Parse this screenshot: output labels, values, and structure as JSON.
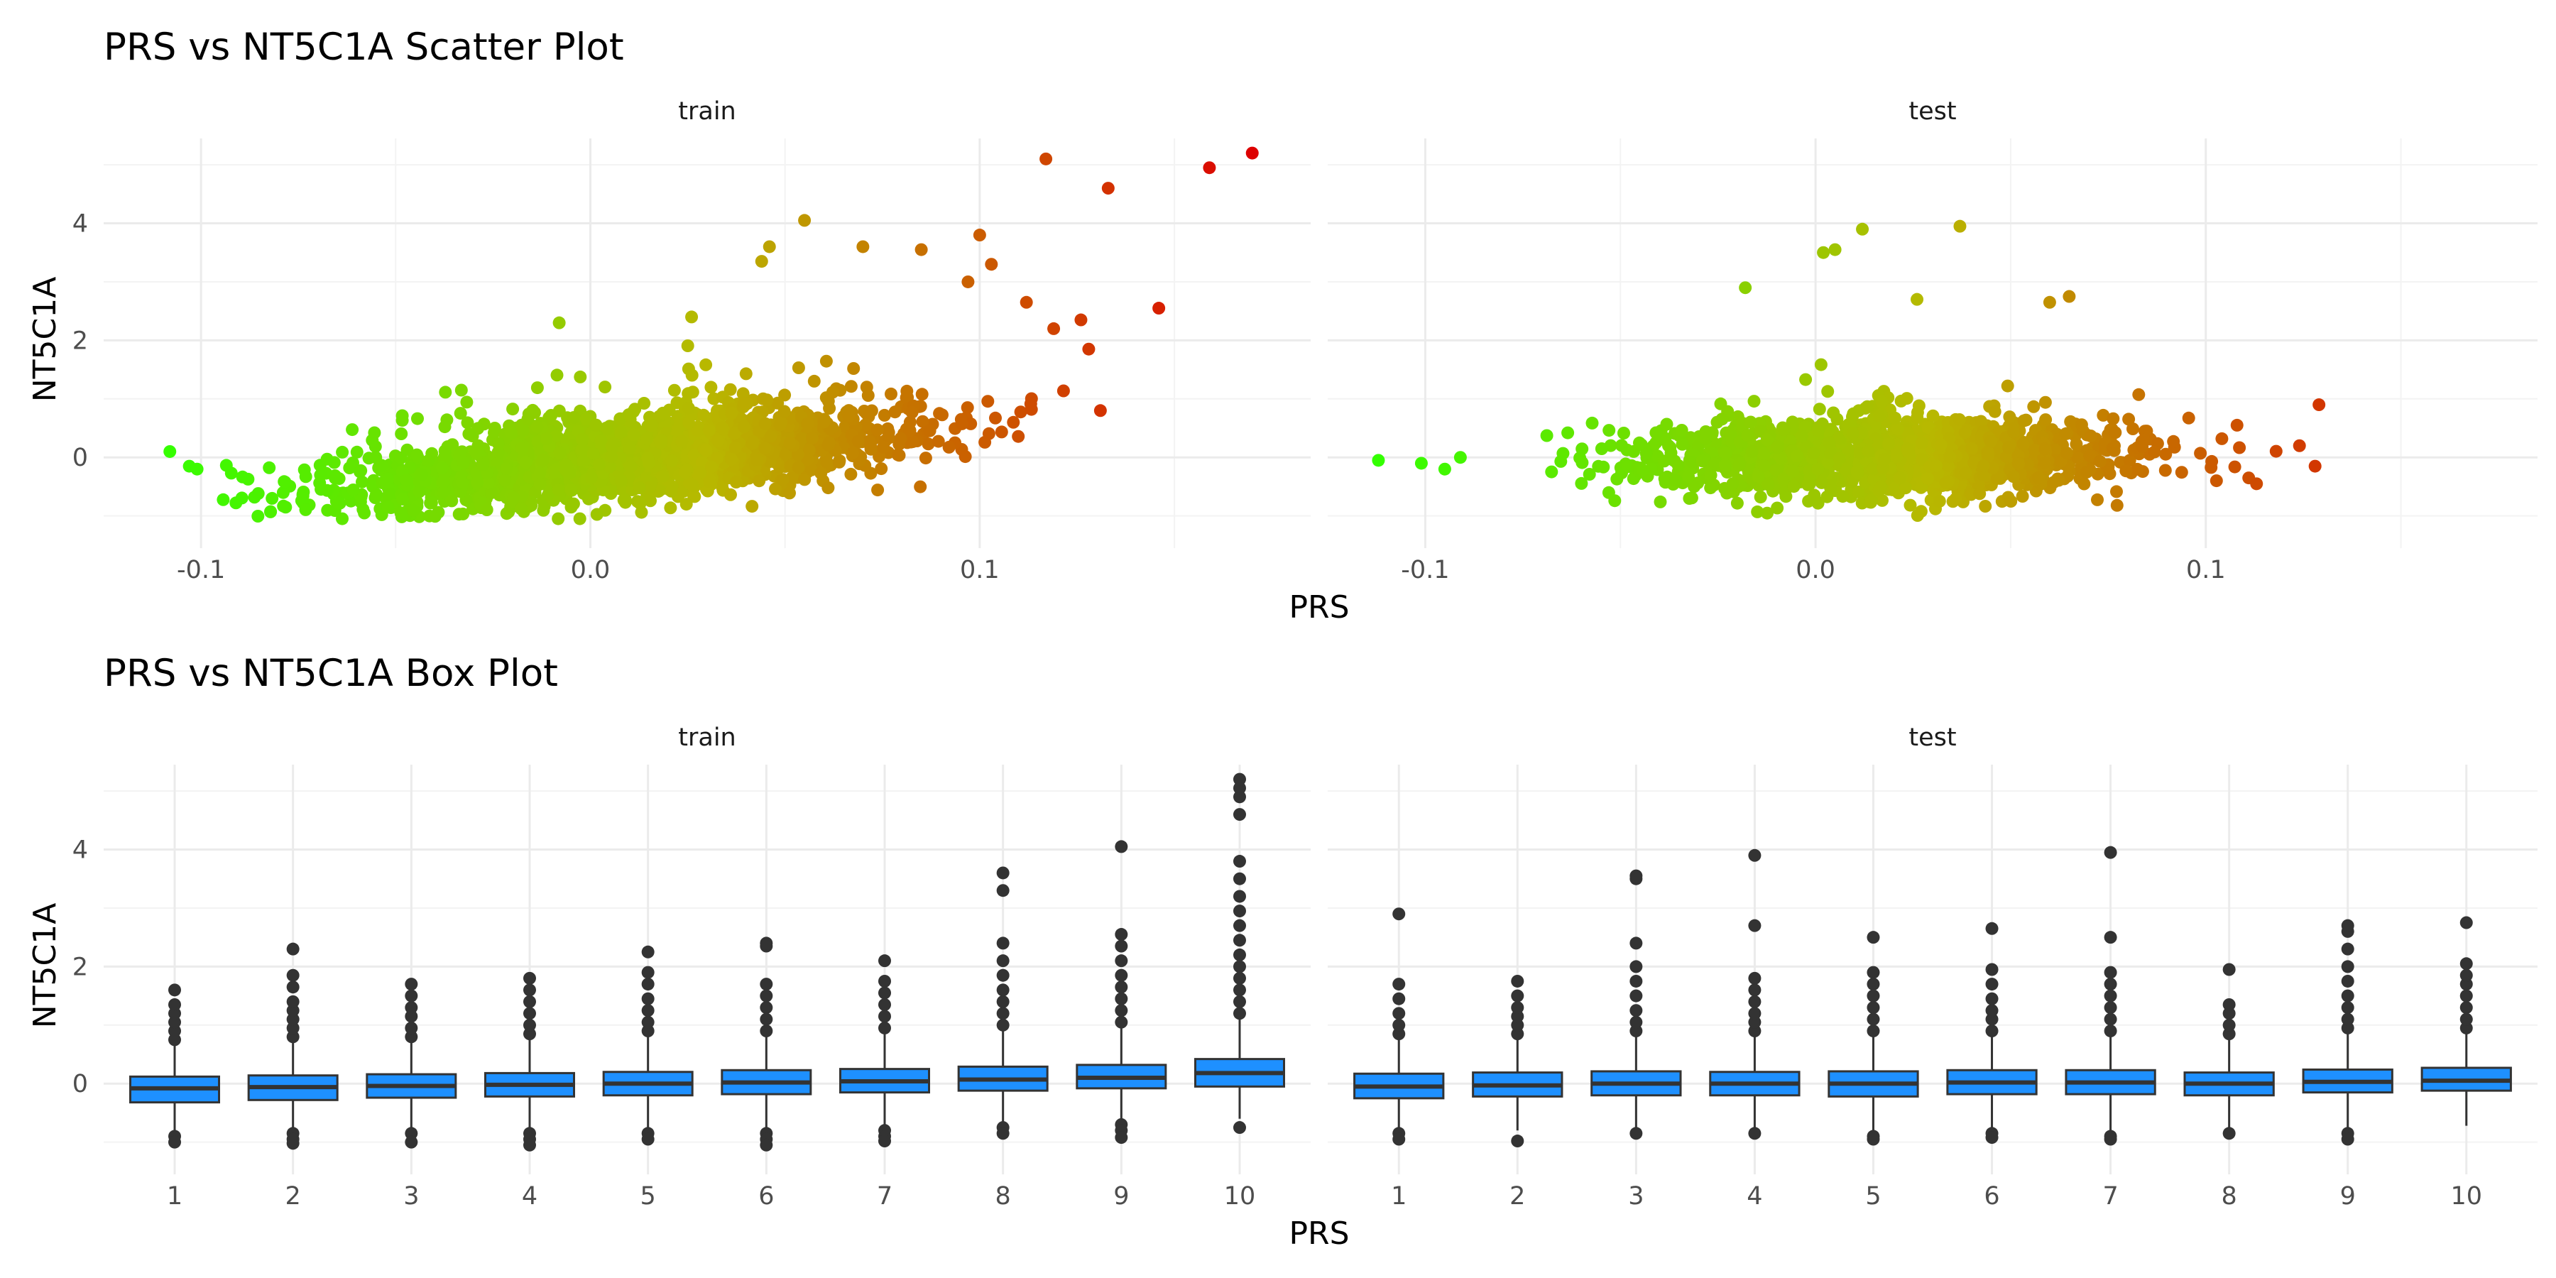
{
  "chart_data": [
    {
      "type": "scatter",
      "title": "PRS vs NT5C1A Scatter Plot",
      "xlabel": "PRS",
      "ylabel": "NT5C1A",
      "panels": [
        "train",
        "test"
      ],
      "xlim": [
        -0.125,
        0.185
      ],
      "ylim": [
        -1.55,
        5.45
      ],
      "x_ticks": [
        -0.1,
        0.0,
        0.1
      ],
      "x_tick_labels": [
        "-0.1",
        "0.0",
        "0.1"
      ],
      "y_ticks": [
        0,
        2,
        4
      ],
      "y_tick_labels": [
        "0",
        "2",
        "4"
      ],
      "color_gradient": {
        "low": "#33ff00",
        "mid": "#b8b800",
        "high": "#dd0000",
        "range": [
          -0.11,
          0.17
        ]
      },
      "point_clouds": [
        {
          "panel": "train",
          "n": 2300,
          "x_mean": 0.01,
          "x_sd": 0.036,
          "x_min": -0.095,
          "x_max": 0.125,
          "slope": 6.0,
          "noise_sd": 0.33,
          "y_floor": -1.05
        },
        {
          "panel": "test",
          "n": 1700,
          "x_mean": 0.02,
          "x_sd": 0.03,
          "x_min": -0.085,
          "x_max": 0.12,
          "slope": 0.0,
          "noise_sd": 0.3,
          "y_floor": -1.0
        }
      ],
      "points": [
        {
          "panel": "train",
          "x": -0.108,
          "y": 0.1
        },
        {
          "panel": "train",
          "x": -0.103,
          "y": -0.15
        },
        {
          "panel": "train",
          "x": -0.101,
          "y": -0.2
        },
        {
          "panel": "train",
          "x": 0.117,
          "y": 5.1
        },
        {
          "panel": "train",
          "x": 0.133,
          "y": 4.6
        },
        {
          "panel": "train",
          "x": 0.159,
          "y": 4.95
        },
        {
          "panel": "train",
          "x": 0.17,
          "y": 5.2
        },
        {
          "panel": "train",
          "x": 0.146,
          "y": 2.55
        },
        {
          "panel": "train",
          "x": 0.055,
          "y": 4.05
        },
        {
          "panel": "train",
          "x": 0.044,
          "y": 3.35
        },
        {
          "panel": "train",
          "x": 0.046,
          "y": 3.6
        },
        {
          "panel": "train",
          "x": 0.07,
          "y": 3.6
        },
        {
          "panel": "train",
          "x": 0.085,
          "y": 3.55
        },
        {
          "panel": "train",
          "x": 0.1,
          "y": 3.8
        },
        {
          "panel": "train",
          "x": 0.103,
          "y": 3.3
        },
        {
          "panel": "train",
          "x": 0.097,
          "y": 3.0
        },
        {
          "panel": "train",
          "x": 0.112,
          "y": 2.65
        },
        {
          "panel": "train",
          "x": 0.119,
          "y": 2.2
        },
        {
          "panel": "train",
          "x": 0.126,
          "y": 2.35
        },
        {
          "panel": "train",
          "x": 0.128,
          "y": 1.85
        },
        {
          "panel": "train",
          "x": 0.131,
          "y": 0.8
        },
        {
          "panel": "train",
          "x": -0.008,
          "y": 2.3
        },
        {
          "panel": "train",
          "x": 0.026,
          "y": 2.4
        },
        {
          "panel": "test",
          "x": -0.112,
          "y": -0.05
        },
        {
          "panel": "test",
          "x": -0.101,
          "y": -0.1
        },
        {
          "panel": "test",
          "x": -0.095,
          "y": -0.2
        },
        {
          "panel": "test",
          "x": -0.091,
          "y": 0.0
        },
        {
          "panel": "test",
          "x": 0.012,
          "y": 3.9
        },
        {
          "panel": "test",
          "x": 0.037,
          "y": 3.95
        },
        {
          "panel": "test",
          "x": 0.002,
          "y": 3.5
        },
        {
          "panel": "test",
          "x": 0.005,
          "y": 3.55
        },
        {
          "panel": "test",
          "x": -0.018,
          "y": 2.9
        },
        {
          "panel": "test",
          "x": 0.026,
          "y": 2.7
        },
        {
          "panel": "test",
          "x": 0.065,
          "y": 2.75
        },
        {
          "panel": "test",
          "x": 0.06,
          "y": 2.65
        },
        {
          "panel": "test",
          "x": 0.129,
          "y": 0.9
        },
        {
          "panel": "test",
          "x": 0.128,
          "y": -0.15
        },
        {
          "panel": "test",
          "x": 0.124,
          "y": 0.2
        },
        {
          "panel": "test",
          "x": 0.108,
          "y": 0.55
        },
        {
          "panel": "test",
          "x": 0.111,
          "y": -0.35
        },
        {
          "panel": "test",
          "x": 0.113,
          "y": -0.45
        }
      ]
    },
    {
      "type": "box",
      "title": "PRS vs NT5C1A Box Plot",
      "xlabel": "PRS",
      "ylabel": "NT5C1A",
      "panels": [
        "train",
        "test"
      ],
      "categories": [
        "1",
        "2",
        "3",
        "4",
        "5",
        "6",
        "7",
        "8",
        "9",
        "10"
      ],
      "ylim": [
        -1.55,
        5.45
      ],
      "y_ticks": [
        0,
        2,
        4
      ],
      "y_tick_labels": [
        "0",
        "2",
        "4"
      ],
      "box_fill": "#1e90ff",
      "series": [
        {
          "panel": "train",
          "boxes": [
            {
              "q1": -0.32,
              "median": -0.08,
              "q3": 0.12,
              "wmin": -0.88,
              "wmax": 0.68,
              "outliers": [
                -0.9,
                -1.0,
                0.75,
                0.9,
                1.05,
                1.2,
                1.35,
                1.6
              ]
            },
            {
              "q1": -0.28,
              "median": -0.06,
              "q3": 0.14,
              "wmin": -0.85,
              "wmax": 0.72,
              "outliers": [
                -0.85,
                -0.95,
                -1.02,
                0.8,
                0.95,
                1.1,
                1.25,
                1.4,
                1.65,
                1.85,
                2.3
              ]
            },
            {
              "q1": -0.24,
              "median": -0.04,
              "q3": 0.16,
              "wmin": -0.82,
              "wmax": 0.75,
              "outliers": [
                -0.85,
                -1.0,
                0.8,
                0.95,
                1.15,
                1.3,
                1.5,
                1.7
              ]
            },
            {
              "q1": -0.22,
              "median": -0.02,
              "q3": 0.18,
              "wmin": -0.8,
              "wmax": 0.78,
              "outliers": [
                -0.85,
                -0.95,
                -1.05,
                0.85,
                1.0,
                1.2,
                1.4,
                1.6,
                1.8
              ]
            },
            {
              "q1": -0.2,
              "median": 0.0,
              "q3": 0.2,
              "wmin": -0.8,
              "wmax": 0.82,
              "outliers": [
                -0.85,
                -0.95,
                0.9,
                1.05,
                1.25,
                1.45,
                1.7,
                1.9,
                2.25
              ]
            },
            {
              "q1": -0.18,
              "median": 0.02,
              "q3": 0.23,
              "wmin": -0.8,
              "wmax": 0.85,
              "outliers": [
                -0.85,
                -0.95,
                -1.05,
                0.9,
                1.1,
                1.3,
                1.5,
                1.7,
                2.35,
                2.4
              ]
            },
            {
              "q1": -0.15,
              "median": 0.04,
              "q3": 0.25,
              "wmin": -0.78,
              "wmax": 0.88,
              "outliers": [
                -0.8,
                -0.9,
                -0.98,
                0.95,
                1.15,
                1.35,
                1.55,
                1.75,
                2.1
              ]
            },
            {
              "q1": -0.12,
              "median": 0.07,
              "q3": 0.29,
              "wmin": -0.75,
              "wmax": 0.92,
              "outliers": [
                -0.75,
                -0.85,
                1.0,
                1.2,
                1.4,
                1.6,
                1.85,
                2.1,
                2.4,
                3.3,
                3.6
              ]
            },
            {
              "q1": -0.08,
              "median": 0.1,
              "q3": 0.32,
              "wmin": -0.68,
              "wmax": 0.98,
              "outliers": [
                -0.7,
                -0.8,
                -0.92,
                1.05,
                1.25,
                1.45,
                1.65,
                1.85,
                2.1,
                2.35,
                2.55,
                4.05
              ]
            },
            {
              "q1": -0.05,
              "median": 0.18,
              "q3": 0.42,
              "wmin": -0.6,
              "wmax": 1.1,
              "outliers": [
                -0.75,
                1.2,
                1.4,
                1.6,
                1.8,
                2.0,
                2.2,
                2.45,
                2.7,
                2.95,
                3.2,
                3.5,
                3.8,
                4.6,
                4.9,
                5.05,
                5.2
              ]
            }
          ]
        },
        {
          "panel": "test",
          "boxes": [
            {
              "q1": -0.25,
              "median": -0.05,
              "q3": 0.17,
              "wmin": -0.82,
              "wmax": 0.78,
              "outliers": [
                -0.85,
                -0.95,
                0.85,
                1.0,
                1.2,
                1.45,
                1.7,
                2.9
              ]
            },
            {
              "q1": -0.22,
              "median": -0.03,
              "q3": 0.19,
              "wmin": -0.8,
              "wmax": 0.8,
              "outliers": [
                -0.98,
                0.85,
                1.0,
                1.15,
                1.3,
                1.5,
                1.75
              ]
            },
            {
              "q1": -0.2,
              "median": 0.0,
              "q3": 0.21,
              "wmin": -0.8,
              "wmax": 0.82,
              "outliers": [
                -0.85,
                0.9,
                1.05,
                1.25,
                1.5,
                1.75,
                2.0,
                2.4,
                3.5,
                3.55
              ]
            },
            {
              "q1": -0.2,
              "median": 0.0,
              "q3": 0.2,
              "wmin": -0.8,
              "wmax": 0.82,
              "outliers": [
                -0.85,
                0.9,
                1.05,
                1.2,
                1.4,
                1.6,
                1.8,
                2.7,
                3.9
              ]
            },
            {
              "q1": -0.22,
              "median": 0.0,
              "q3": 0.21,
              "wmin": -0.85,
              "wmax": 0.82,
              "outliers": [
                -0.9,
                -0.95,
                0.9,
                1.1,
                1.3,
                1.5,
                1.7,
                1.9,
                2.5
              ]
            },
            {
              "q1": -0.18,
              "median": 0.02,
              "q3": 0.23,
              "wmin": -0.82,
              "wmax": 0.84,
              "outliers": [
                -0.85,
                -0.92,
                0.9,
                1.1,
                1.25,
                1.45,
                1.7,
                1.95,
                2.65
              ]
            },
            {
              "q1": -0.18,
              "median": 0.02,
              "q3": 0.23,
              "wmin": -0.85,
              "wmax": 0.84,
              "outliers": [
                -0.9,
                -0.95,
                0.9,
                1.1,
                1.3,
                1.5,
                1.7,
                1.9,
                2.5,
                3.95
              ]
            },
            {
              "q1": -0.2,
              "median": 0.0,
              "q3": 0.19,
              "wmin": -0.8,
              "wmax": 0.8,
              "outliers": [
                -0.85,
                0.85,
                1.0,
                1.2,
                1.35,
                1.95
              ]
            },
            {
              "q1": -0.15,
              "median": 0.03,
              "q3": 0.24,
              "wmin": -0.8,
              "wmax": 0.86,
              "outliers": [
                -0.85,
                -0.95,
                0.95,
                1.1,
                1.3,
                1.5,
                1.75,
                2.0,
                2.3,
                2.6,
                2.7
              ]
            },
            {
              "q1": -0.12,
              "median": 0.05,
              "q3": 0.27,
              "wmin": -0.72,
              "wmax": 0.9,
              "outliers": [
                0.95,
                1.1,
                1.3,
                1.5,
                1.7,
                1.85,
                2.05,
                2.75
              ]
            }
          ]
        }
      ]
    }
  ]
}
